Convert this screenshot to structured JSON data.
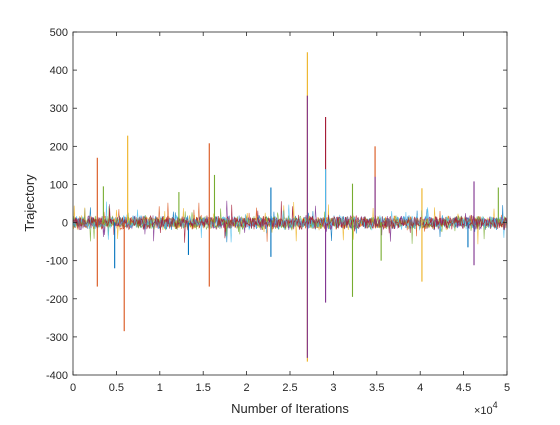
{
  "chart_data": {
    "type": "line",
    "title": "",
    "xlabel": "Number of Iterations",
    "ylabel": "Trajectory",
    "xlim": [
      0,
      5
    ],
    "ylim": [
      -400,
      500
    ],
    "x_exponent_label": "×10",
    "x_exponent_power": "4",
    "xticks": [
      0,
      0.5,
      1,
      1.5,
      2,
      2.5,
      3,
      3.5,
      4,
      4.5,
      5
    ],
    "xtick_labels": [
      "0",
      "0.5",
      "1",
      "1.5",
      "2",
      "2.5",
      "3",
      "3.5",
      "4",
      "4.5",
      "5"
    ],
    "yticks": [
      -400,
      -300,
      -200,
      -100,
      0,
      100,
      200,
      300,
      400,
      500
    ],
    "ytick_labels": [
      "-400",
      "-300",
      "-200",
      "-100",
      "0",
      "100",
      "200",
      "300",
      "400",
      "500"
    ],
    "grid": false,
    "colors": [
      "#0072BD",
      "#D95319",
      "#EDB120",
      "#7E2F8E",
      "#77AC30",
      "#4DBEEE",
      "#A2142F"
    ],
    "noise_amplitude": 15,
    "spikes": [
      {
        "x": 0.28,
        "y": 170,
        "color": "#D95319"
      },
      {
        "x": 0.28,
        "y": -168,
        "color": "#D95319"
      },
      {
        "x": 0.59,
        "y": -285,
        "color": "#D95319"
      },
      {
        "x": 0.63,
        "y": 228,
        "color": "#EDB120"
      },
      {
        "x": 0.48,
        "y": -120,
        "color": "#0072BD"
      },
      {
        "x": 0.35,
        "y": 95,
        "color": "#77AC30"
      },
      {
        "x": 1.22,
        "y": 80,
        "color": "#77AC30"
      },
      {
        "x": 1.33,
        "y": -85,
        "color": "#0072BD"
      },
      {
        "x": 1.57,
        "y": 208,
        "color": "#D95319"
      },
      {
        "x": 1.57,
        "y": -168,
        "color": "#D95319"
      },
      {
        "x": 1.63,
        "y": 125,
        "color": "#77AC30"
      },
      {
        "x": 2.28,
        "y": 92,
        "color": "#0072BD"
      },
      {
        "x": 2.28,
        "y": -90,
        "color": "#0072BD"
      },
      {
        "x": 2.7,
        "y": 447,
        "color": "#EDB120"
      },
      {
        "x": 2.7,
        "y": 333,
        "color": "#7E2F8E"
      },
      {
        "x": 2.7,
        "y": -365,
        "color": "#EDB120"
      },
      {
        "x": 2.7,
        "y": -355,
        "color": "#7E2F8E"
      },
      {
        "x": 2.91,
        "y": 277,
        "color": "#A2142F"
      },
      {
        "x": 2.91,
        "y": 140,
        "color": "#4DBEEE"
      },
      {
        "x": 2.91,
        "y": -210,
        "color": "#7E2F8E"
      },
      {
        "x": 3.22,
        "y": 102,
        "color": "#77AC30"
      },
      {
        "x": 3.22,
        "y": -195,
        "color": "#77AC30"
      },
      {
        "x": 3.48,
        "y": 200,
        "color": "#D95319"
      },
      {
        "x": 3.48,
        "y": 120,
        "color": "#7E2F8E"
      },
      {
        "x": 3.55,
        "y": -100,
        "color": "#77AC30"
      },
      {
        "x": 4.02,
        "y": 90,
        "color": "#EDB120"
      },
      {
        "x": 4.02,
        "y": -155,
        "color": "#EDB120"
      },
      {
        "x": 4.62,
        "y": 108,
        "color": "#7E2F8E"
      },
      {
        "x": 4.62,
        "y": -112,
        "color": "#7E2F8E"
      },
      {
        "x": 4.9,
        "y": 92,
        "color": "#77AC30"
      },
      {
        "x": 4.55,
        "y": -65,
        "color": "#0072BD"
      }
    ]
  }
}
